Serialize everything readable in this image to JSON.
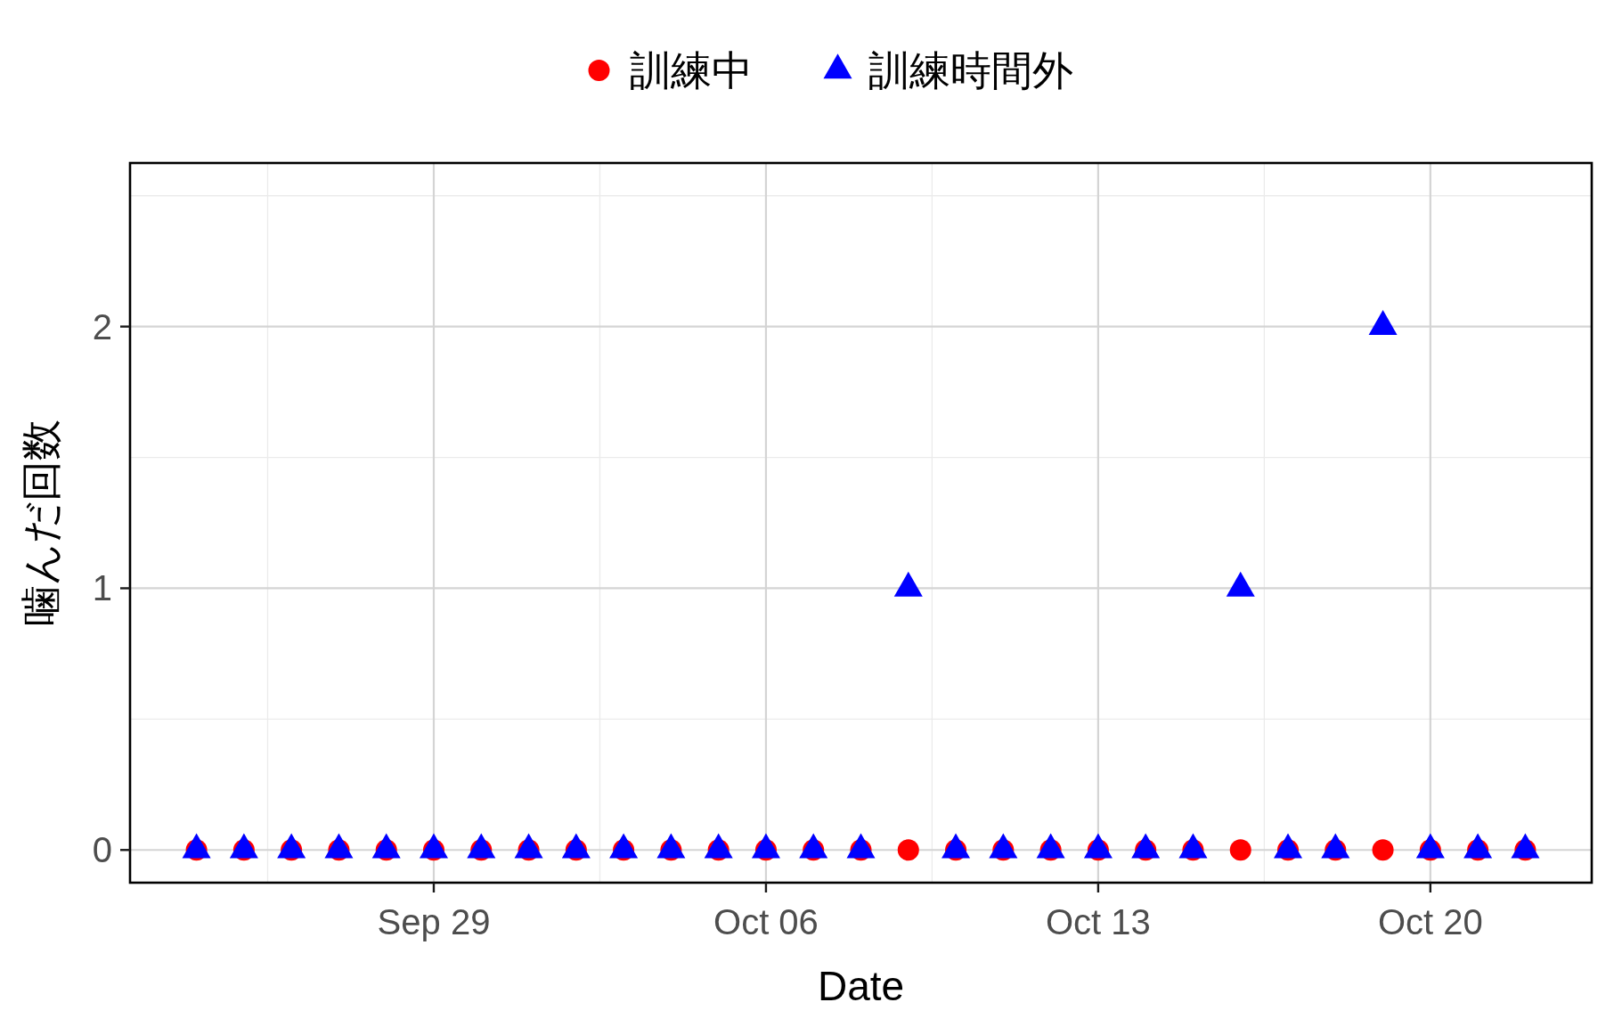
{
  "chart_data": {
    "type": "scatter",
    "xlabel": "Date",
    "ylabel": "噛んだ回数",
    "x": [
      "--09-24",
      "--09-25",
      "--09-26",
      "--09-27",
      "--09-28",
      "--09-29",
      "--09-30",
      "--10-01",
      "--10-02",
      "--10-03",
      "--10-04",
      "--10-05",
      "--10-06",
      "--10-07",
      "--10-08",
      "--10-09",
      "--10-10",
      "--10-11",
      "--10-12",
      "--10-13",
      "--10-14",
      "--10-15",
      "--10-16",
      "--10-17",
      "--10-18",
      "--10-19",
      "--10-20",
      "--10-21",
      "--10-22"
    ],
    "series": [
      {
        "name": "訓練中",
        "color": "#ff0000",
        "marker": "circle",
        "values": [
          0,
          0,
          0,
          0,
          0,
          0,
          0,
          0,
          0,
          0,
          0,
          0,
          0,
          0,
          0,
          0,
          0,
          0,
          0,
          0,
          0,
          0,
          0,
          0,
          0,
          0,
          0,
          0,
          0
        ]
      },
      {
        "name": "訓練時間外",
        "color": "#0000ff",
        "marker": "triangle",
        "values": [
          0,
          0,
          0,
          0,
          0,
          0,
          0,
          0,
          0,
          0,
          0,
          0,
          0,
          0,
          0,
          1,
          0,
          0,
          0,
          0,
          0,
          0,
          1,
          0,
          0,
          2,
          0,
          0,
          0
        ]
      }
    ],
    "xlim": [
      "--09-22T14:24",
      "--10-23T09:36"
    ],
    "xticks": [
      {
        "value": "--09-29",
        "label": "Sep 29"
      },
      {
        "value": "--10-06",
        "label": "Oct 06"
      },
      {
        "value": "--10-13",
        "label": "Oct 13"
      },
      {
        "value": "--10-20",
        "label": "Oct 20"
      }
    ],
    "ylim": [
      -0.125,
      2.625
    ],
    "yticks": [
      0,
      1,
      2
    ],
    "grid": true,
    "legend": "top"
  }
}
